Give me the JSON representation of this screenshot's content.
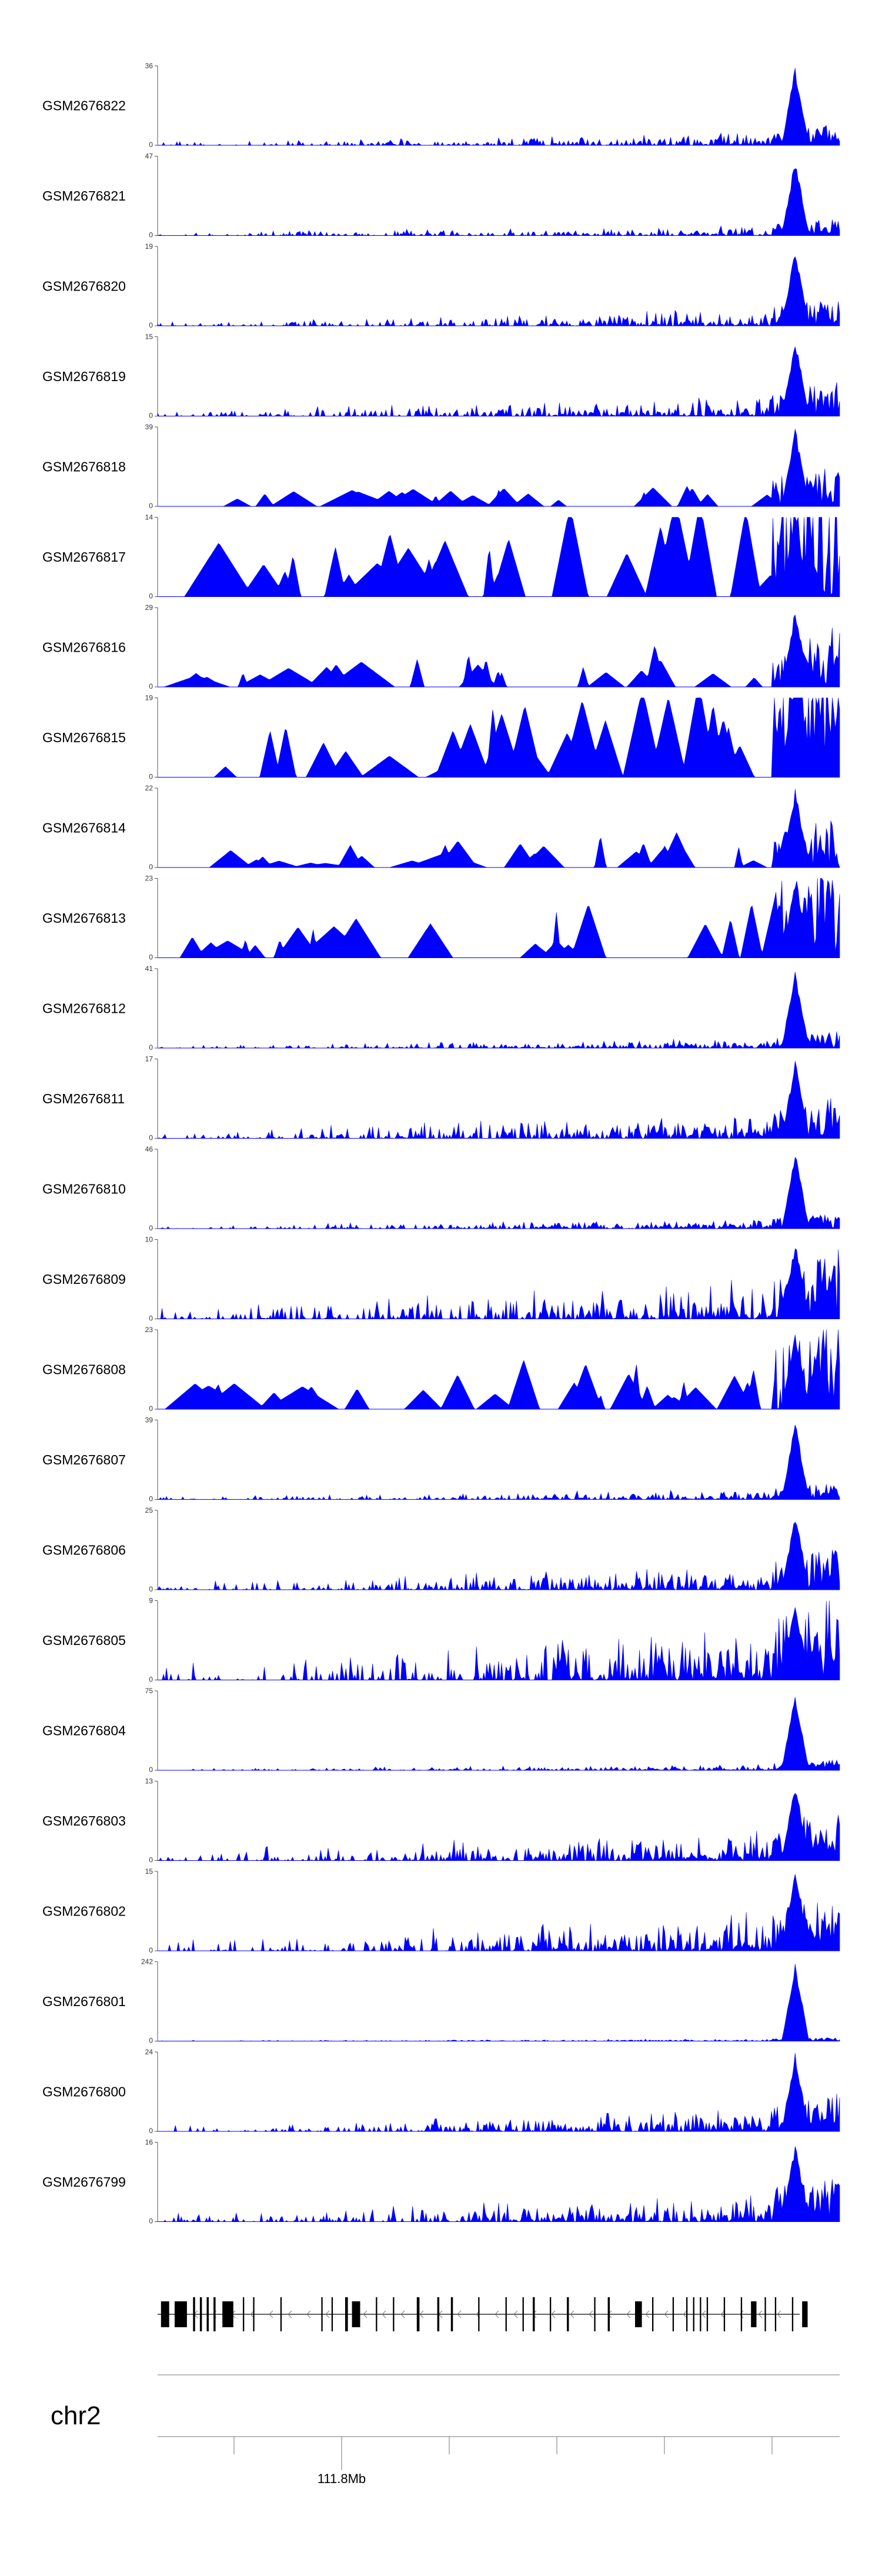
{
  "chart_data": {
    "type": "area",
    "color": "#0000ff",
    "tracks": [
      {
        "name": "GSM2676822",
        "ymax": "36",
        "ymin": "0",
        "peak": 36,
        "baseline": 0.06,
        "profile": "background",
        "seed": 1
      },
      {
        "name": "GSM2676821",
        "ymax": "47",
        "ymin": "0",
        "peak": 47,
        "baseline": 0.05,
        "profile": "background",
        "seed": 2
      },
      {
        "name": "GSM2676820",
        "ymax": "19",
        "ymin": "0",
        "peak": 19,
        "baseline": 0.08,
        "profile": "background",
        "seed": 3
      },
      {
        "name": "GSM2676819",
        "ymax": "15",
        "ymin": "0",
        "peak": 15,
        "baseline": 0.1,
        "profile": "background",
        "seed": 4
      },
      {
        "name": "GSM2676818",
        "ymax": "39",
        "ymin": "0",
        "peak": 39,
        "baseline": 0.12,
        "profile": "sparse",
        "seed": 5
      },
      {
        "name": "GSM2676817",
        "ymax": "14",
        "ymin": "0",
        "peak": 14,
        "baseline": 0.45,
        "profile": "sparse",
        "seed": 6
      },
      {
        "name": "GSM2676816",
        "ymax": "29",
        "ymin": "0",
        "peak": 29,
        "baseline": 0.18,
        "profile": "sparse",
        "seed": 7
      },
      {
        "name": "GSM2676815",
        "ymax": "19",
        "ymin": "0",
        "peak": 19,
        "baseline": 0.45,
        "profile": "sparse",
        "seed": 8
      },
      {
        "name": "GSM2676814",
        "ymax": "22",
        "ymin": "0",
        "peak": 22,
        "baseline": 0.15,
        "profile": "sparse",
        "seed": 9
      },
      {
        "name": "GSM2676813",
        "ymax": "23",
        "ymin": "0",
        "peak": 23,
        "baseline": 0.3,
        "profile": "sparse",
        "seed": 10
      },
      {
        "name": "GSM2676812",
        "ymax": "41",
        "ymin": "0",
        "peak": 41,
        "baseline": 0.05,
        "profile": "background",
        "seed": 11
      },
      {
        "name": "GSM2676811",
        "ymax": "17",
        "ymin": "0",
        "peak": 17,
        "baseline": 0.12,
        "profile": "background",
        "seed": 12
      },
      {
        "name": "GSM2676810",
        "ymax": "46",
        "ymin": "0",
        "peak": 46,
        "baseline": 0.05,
        "profile": "background",
        "seed": 13
      },
      {
        "name": "GSM2676809",
        "ymax": "10",
        "ymin": "0",
        "peak": 10,
        "baseline": 0.2,
        "profile": "background",
        "seed": 14
      },
      {
        "name": "GSM2676808",
        "ymax": "23",
        "ymin": "0",
        "peak": 23,
        "baseline": 0.25,
        "profile": "sparse",
        "seed": 15
      },
      {
        "name": "GSM2676807",
        "ymax": "39",
        "ymin": "0",
        "peak": 39,
        "baseline": 0.05,
        "profile": "background",
        "seed": 16
      },
      {
        "name": "GSM2676806",
        "ymax": "25",
        "ymin": "0",
        "peak": 25,
        "baseline": 0.12,
        "profile": "background",
        "seed": 17
      },
      {
        "name": "GSM2676805",
        "ymax": "9",
        "ymin": "0",
        "peak": 9,
        "baseline": 0.25,
        "profile": "background",
        "seed": 18
      },
      {
        "name": "GSM2676804",
        "ymax": "75",
        "ymin": "0",
        "peak": 75,
        "baseline": 0.03,
        "profile": "background",
        "seed": 19
      },
      {
        "name": "GSM2676803",
        "ymax": "13",
        "ymin": "0",
        "peak": 13,
        "baseline": 0.15,
        "profile": "background",
        "seed": 20
      },
      {
        "name": "GSM2676802",
        "ymax": "15",
        "ymin": "0",
        "peak": 15,
        "baseline": 0.18,
        "profile": "background",
        "seed": 21
      },
      {
        "name": "GSM2676801",
        "ymax": "242",
        "ymin": "0",
        "peak": 242,
        "baseline": 0.01,
        "profile": "background",
        "seed": 22
      },
      {
        "name": "GSM2676800",
        "ymax": "24",
        "ymin": "0",
        "peak": 24,
        "baseline": 0.12,
        "profile": "background",
        "seed": 23
      },
      {
        "name": "GSM2676799",
        "ymax": "16",
        "ymin": "0",
        "peak": 16,
        "baseline": 0.14,
        "profile": "background",
        "seed": 24
      }
    ],
    "chromosome": "chr2",
    "tick_label": "111.8Mb",
    "gene_structure": {
      "strand": "-",
      "exons": [
        {
          "x": 0.005,
          "w": 0.012,
          "tall": true
        },
        {
          "x": 0.025,
          "w": 0.018,
          "tall": true
        },
        {
          "x": 0.052,
          "w": 0.003
        },
        {
          "x": 0.062,
          "w": 0.003
        },
        {
          "x": 0.072,
          "w": 0.003
        },
        {
          "x": 0.082,
          "w": 0.003
        },
        {
          "x": 0.095,
          "w": 0.016,
          "tall": true
        },
        {
          "x": 0.125,
          "w": 0.002
        },
        {
          "x": 0.14,
          "w": 0.002
        },
        {
          "x": 0.18,
          "w": 0.002
        },
        {
          "x": 0.24,
          "w": 0.002
        },
        {
          "x": 0.255,
          "w": 0.002
        },
        {
          "x": 0.275,
          "w": 0.004
        },
        {
          "x": 0.285,
          "w": 0.012,
          "tall": true
        },
        {
          "x": 0.32,
          "w": 0.002
        },
        {
          "x": 0.345,
          "w": 0.002
        },
        {
          "x": 0.38,
          "w": 0.004
        },
        {
          "x": 0.41,
          "w": 0.003
        },
        {
          "x": 0.43,
          "w": 0.003
        },
        {
          "x": 0.47,
          "w": 0.002
        },
        {
          "x": 0.51,
          "w": 0.002
        },
        {
          "x": 0.535,
          "w": 0.002
        },
        {
          "x": 0.55,
          "w": 0.003
        },
        {
          "x": 0.575,
          "w": 0.002
        },
        {
          "x": 0.6,
          "w": 0.003
        },
        {
          "x": 0.64,
          "w": 0.002
        },
        {
          "x": 0.66,
          "w": 0.003
        },
        {
          "x": 0.7,
          "w": 0.01,
          "tall": true
        },
        {
          "x": 0.725,
          "w": 0.002
        },
        {
          "x": 0.755,
          "w": 0.002
        },
        {
          "x": 0.775,
          "w": 0.002
        },
        {
          "x": 0.785,
          "w": 0.002
        },
        {
          "x": 0.795,
          "w": 0.002
        },
        {
          "x": 0.805,
          "w": 0.002
        },
        {
          "x": 0.83,
          "w": 0.002
        },
        {
          "x": 0.855,
          "w": 0.002
        },
        {
          "x": 0.87,
          "w": 0.008,
          "tall": true
        },
        {
          "x": 0.89,
          "w": 0.002
        },
        {
          "x": 0.905,
          "w": 0.002
        },
        {
          "x": 0.93,
          "w": 0.002
        },
        {
          "x": 0.945,
          "w": 0.008,
          "tall": true
        }
      ]
    }
  }
}
